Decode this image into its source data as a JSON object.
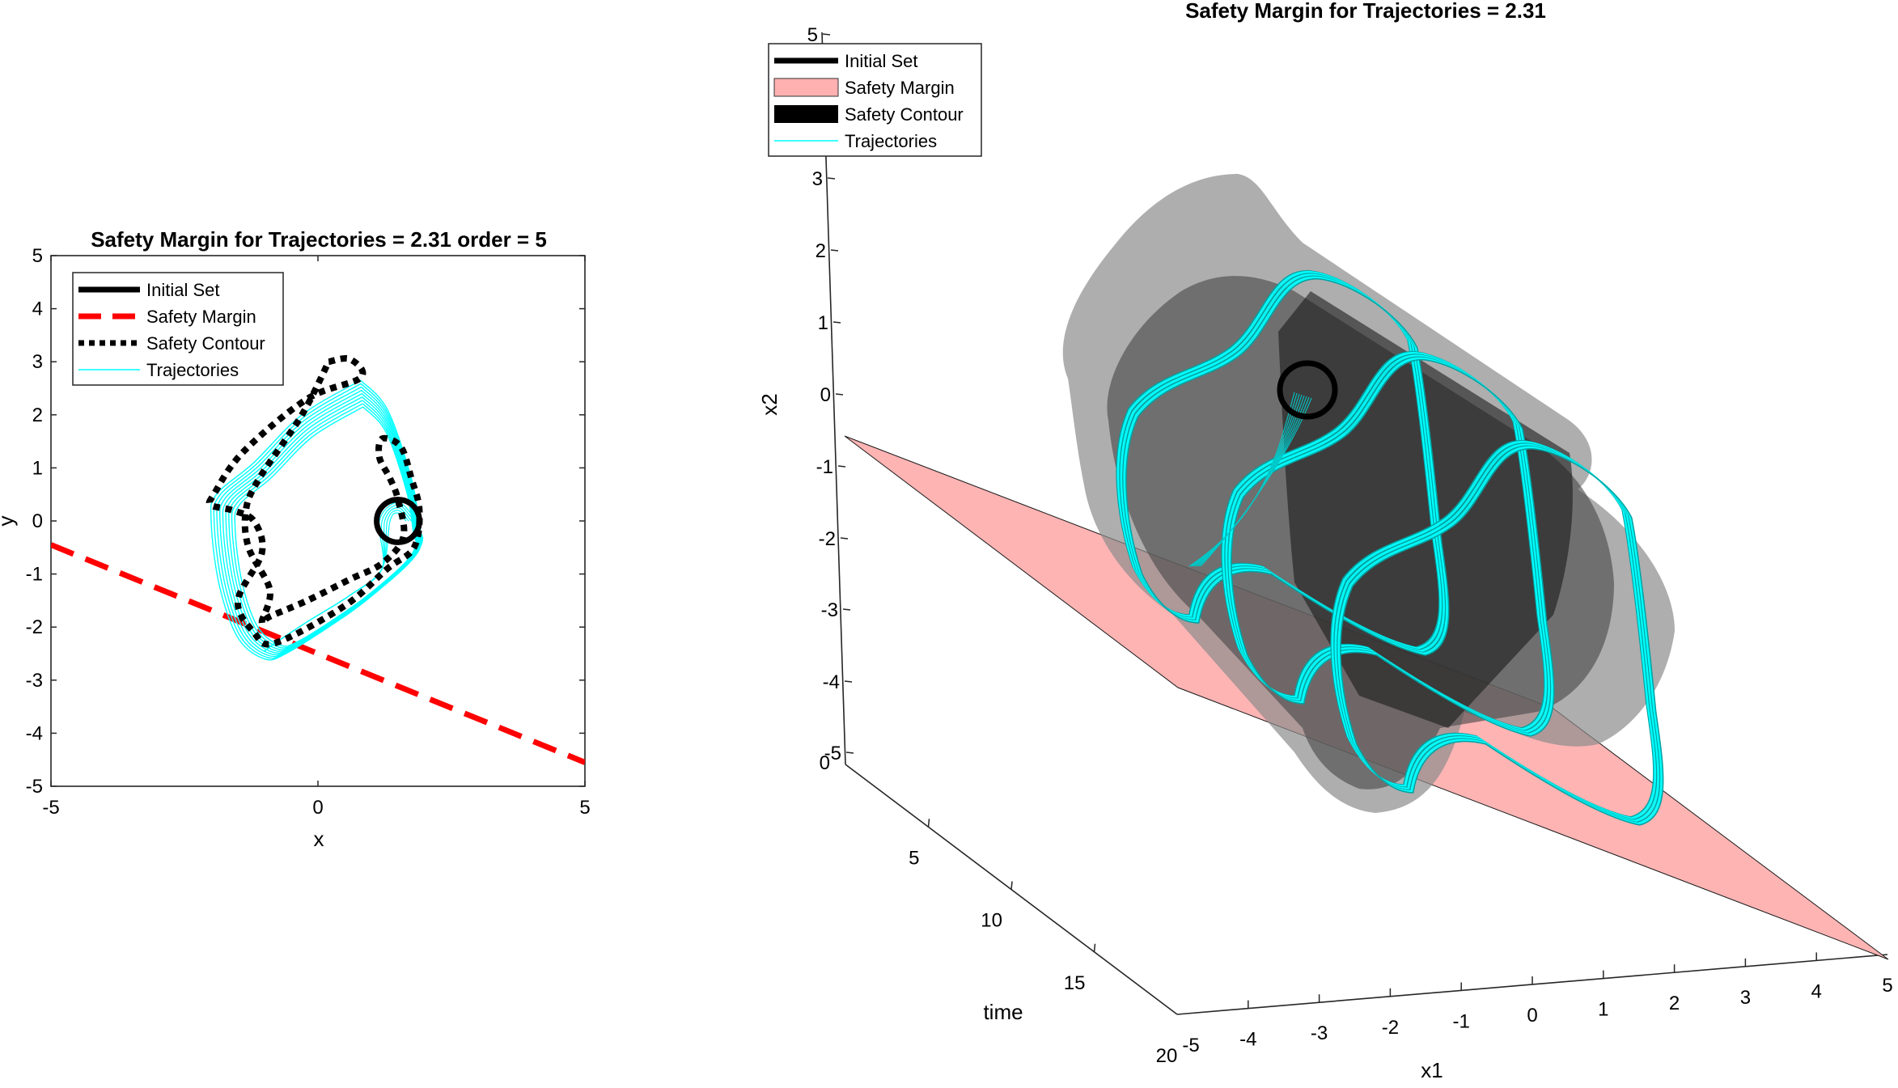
{
  "chart_data": [
    {
      "type": "line",
      "title": "Safety Margin for Trajectories = 2.31 order = 5",
      "xlabel": "x",
      "ylabel": "y",
      "xlim": [
        -5,
        5
      ],
      "ylim": [
        -5,
        5
      ],
      "xticks": [
        "-5",
        "0",
        "5"
      ],
      "yticks": [
        "5",
        "4",
        "3",
        "2",
        "1",
        "0",
        "-1",
        "-2",
        "-3",
        "-4",
        "-5"
      ],
      "grid": false,
      "legend_position": "top-left",
      "legend": [
        {
          "label": "Initial Set",
          "style": "solid",
          "color": "#000000"
        },
        {
          "label": "Safety Margin",
          "style": "dashed",
          "color": "#ff0000"
        },
        {
          "label": "Safety Contour",
          "style": "dotted",
          "color": "#000000"
        },
        {
          "label": "Trajectories",
          "style": "solid",
          "color": "#00ffff"
        }
      ],
      "series": [
        {
          "name": "Safety Margin",
          "x": [
            -5,
            5
          ],
          "y": [
            -0.45,
            -4.55
          ]
        },
        {
          "name": "Initial Set",
          "center": [
            1.5,
            0.0
          ],
          "radius": 0.4
        },
        {
          "name": "Safety Contour",
          "x": [
            0.2,
            0.6,
            0.8,
            -0.2,
            -1.4,
            -1.95,
            -2.0,
            -1.6,
            -1.2,
            -1.05,
            -1.5,
            -1.2,
            -0.8,
            0.5,
            1.3,
            1.8,
            1.9,
            1.75,
            1.55,
            1.2,
            1.15,
            1.35,
            1.5,
            1.6,
            1.2,
            0.6,
            -0.2,
            -0.9,
            -1.05,
            -0.9,
            -1.3,
            -1.35,
            -1.1,
            -0.3,
            0.2
          ],
          "y": [
            3.0,
            3.05,
            2.7,
            2.3,
            1.3,
            0.5,
            0.3,
            0.2,
            0.0,
            -0.6,
            -1.5,
            -2.1,
            -2.3,
            -1.6,
            -0.9,
            -0.5,
            0.2,
            0.8,
            1.4,
            1.55,
            1.2,
            0.8,
            0.4,
            -0.3,
            -0.8,
            -1.1,
            -1.5,
            -1.8,
            -1.9,
            -1.3,
            -0.5,
            0.2,
            0.8,
            2.0,
            3.0
          ]
        },
        {
          "name": "Trajectories",
          "x": [
            0.8,
            1.3,
            1.75,
            1.9,
            1.95,
            1.7,
            0.9,
            0.2,
            -0.6,
            -1.0,
            -1.5,
            -1.85,
            -2.0,
            -1.9,
            -1.2,
            -0.3,
            0.8
          ],
          "y": [
            2.65,
            2.1,
            0.8,
            -0.1,
            -0.4,
            -0.8,
            -1.5,
            -2.0,
            -2.5,
            -2.6,
            -2.2,
            -1.2,
            0.0,
            0.5,
            1.1,
            2.0,
            2.65
          ]
        }
      ]
    },
    {
      "type": "line",
      "title": "Safety Margin for Trajectories = 2.31",
      "xlabel": "x1",
      "ylabel": "x2",
      "zlabel": "time",
      "xlim": [
        -5,
        5
      ],
      "ylim": [
        -5,
        5
      ],
      "zlim": [
        0,
        20
      ],
      "xticks": [
        "-5",
        "-4",
        "-3",
        "-2",
        "-1",
        "0",
        "1",
        "2",
        "3",
        "4",
        "5"
      ],
      "yticks": [
        "5",
        "3",
        "2",
        "1",
        "0",
        "-1",
        "-2",
        "-3",
        "-4",
        "-5"
      ],
      "zticks": [
        "0",
        "5",
        "10",
        "15",
        "20"
      ],
      "grid": false,
      "legend_position": "top-left",
      "legend": [
        {
          "label": "Initial Set",
          "style": "solid",
          "color": "#000000"
        },
        {
          "label": "Safety Margin",
          "style": "patch",
          "color": "#ffb0b0"
        },
        {
          "label": "Safety Contour",
          "style": "patch",
          "color": "#000000"
        },
        {
          "label": "Trajectories",
          "style": "solid",
          "color": "#00ffff"
        }
      ]
    }
  ]
}
